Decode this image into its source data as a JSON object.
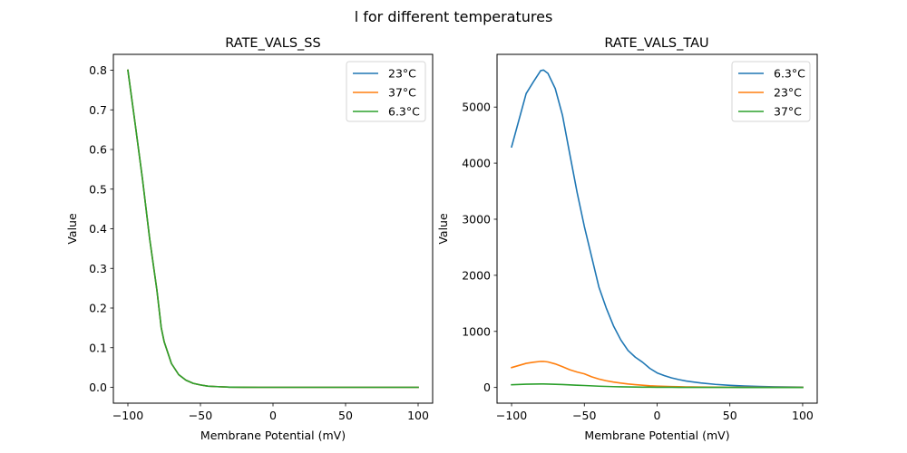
{
  "suptitle": "l for different temperatures",
  "chart_data": [
    {
      "type": "line",
      "title": "RATE_VALS_SS",
      "xlabel": "Membrane Potential (mV)",
      "ylabel": "Value",
      "xlim": [
        -110,
        110
      ],
      "ylim": [
        -0.04,
        0.84
      ],
      "xticks": [
        -100,
        -50,
        0,
        50,
        100
      ],
      "xtick_labels": [
        "−100",
        "−50",
        "0",
        "50",
        "100"
      ],
      "yticks": [
        0.0,
        0.1,
        0.2,
        0.3,
        0.4,
        0.5,
        0.6,
        0.7,
        0.8
      ],
      "ytick_labels": [
        "0.0",
        "0.1",
        "0.2",
        "0.3",
        "0.4",
        "0.5",
        "0.6",
        "0.7",
        "0.8"
      ],
      "grid": false,
      "legend_position": "top-right",
      "x": [
        -100,
        -95,
        -90,
        -85,
        -80,
        -77,
        -75,
        -70,
        -65,
        -60,
        -55,
        -50,
        -45,
        -40,
        -30,
        -20,
        -10,
        0,
        25,
        50,
        75,
        100
      ],
      "series": [
        {
          "name": "23°C",
          "color": "#1f77b4",
          "values": [
            0.8,
            0.665,
            0.527,
            0.375,
            0.245,
            0.15,
            0.115,
            0.06,
            0.032,
            0.018,
            0.01,
            0.006,
            0.003,
            0.002,
            0.0005,
            0.0001,
            0,
            0,
            0,
            0,
            0,
            0
          ]
        },
        {
          "name": "37°C",
          "color": "#ff7f0e",
          "values": [
            0.8,
            0.665,
            0.527,
            0.375,
            0.245,
            0.15,
            0.115,
            0.06,
            0.032,
            0.018,
            0.01,
            0.006,
            0.003,
            0.002,
            0.0005,
            0.0001,
            0,
            0,
            0,
            0,
            0,
            0
          ]
        },
        {
          "name": "6.3°C",
          "color": "#2ca02c",
          "values": [
            0.8,
            0.665,
            0.527,
            0.375,
            0.245,
            0.15,
            0.115,
            0.06,
            0.032,
            0.018,
            0.01,
            0.006,
            0.003,
            0.002,
            0.0005,
            0.0001,
            0,
            0,
            0,
            0,
            0,
            0
          ]
        }
      ]
    },
    {
      "type": "line",
      "title": "RATE_VALS_TAU",
      "xlabel": "Membrane Potential (mV)",
      "ylabel": "Value",
      "xlim": [
        -110,
        110
      ],
      "ylim": [
        -280,
        5940
      ],
      "xticks": [
        -100,
        -50,
        0,
        50,
        100
      ],
      "xtick_labels": [
        "−100",
        "−50",
        "0",
        "50",
        "100"
      ],
      "yticks": [
        0,
        1000,
        2000,
        3000,
        4000,
        5000
      ],
      "ytick_labels": [
        "0",
        "1000",
        "2000",
        "3000",
        "4000",
        "5000"
      ],
      "grid": false,
      "legend_position": "top-right",
      "x": [
        -100,
        -90,
        -85,
        -80,
        -78,
        -75,
        -70,
        -65,
        -60,
        -55,
        -50,
        -45,
        -40,
        -35,
        -30,
        -25,
        -20,
        -15,
        -10,
        -5,
        0,
        5,
        10,
        15,
        20,
        30,
        40,
        50,
        60,
        70,
        80,
        100
      ],
      "series": [
        {
          "name": "6.3°C",
          "color": "#1f77b4",
          "values": [
            4290,
            5240,
            5450,
            5650,
            5660,
            5600,
            5330,
            4850,
            4160,
            3480,
            2870,
            2330,
            1790,
            1420,
            1100,
            850,
            660,
            540,
            450,
            340,
            260,
            210,
            170,
            140,
            115,
            80,
            55,
            38,
            26,
            18,
            12,
            6
          ]
        },
        {
          "name": "23°C",
          "color": "#ff7f0e",
          "values": [
            355,
            430,
            450,
            465,
            465,
            455,
            420,
            370,
            315,
            275,
            243,
            190,
            150,
            120,
            97,
            78,
            62,
            50,
            40,
            30,
            25,
            20,
            16,
            13,
            11,
            8,
            5,
            4,
            3,
            2,
            1,
            1
          ]
        },
        {
          "name": "37°C",
          "color": "#2ca02c",
          "values": [
            48,
            58,
            61,
            62,
            62,
            60,
            57,
            52,
            46,
            40,
            35,
            29,
            23,
            19,
            15,
            12,
            10,
            8,
            6,
            5,
            4,
            3,
            3,
            2,
            2,
            1,
            1,
            1,
            0,
            0,
            0,
            0
          ]
        }
      ]
    }
  ]
}
